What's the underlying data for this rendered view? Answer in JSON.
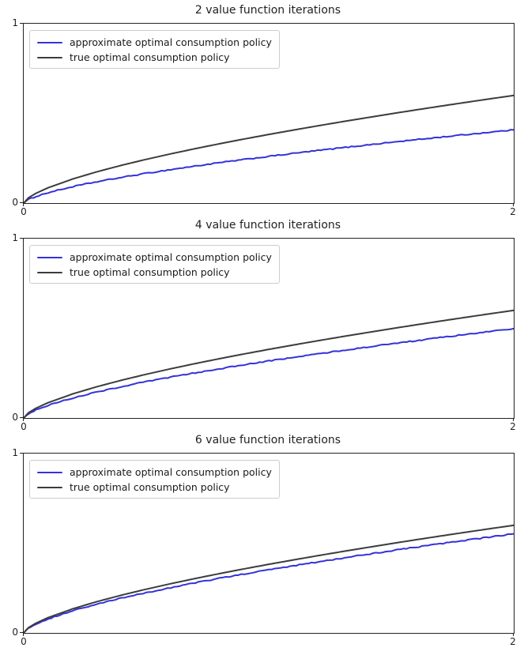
{
  "figure": {
    "background": "#ffffff",
    "text_color": "#1f1f1f",
    "spine_color": "#222222",
    "approx_color": "#3532d8",
    "true_color": "#3c3c3c"
  },
  "chart_data": [
    {
      "type": "line",
      "title": "2 value function iterations",
      "xlabel": "",
      "ylabel": "",
      "xlim": [
        0,
        2
      ],
      "ylim": [
        0,
        1
      ],
      "xtick_labels": [
        "0",
        "2"
      ],
      "ytick_labels": [
        "0",
        "1"
      ],
      "grid": false,
      "legend_position": "upper left",
      "series": [
        {
          "name": "approximate optimal consumption policy",
          "color": "#3532d8",
          "linewidth": 2,
          "noise": 0.003,
          "x": [
            0,
            0.02,
            0.05,
            0.1,
            0.2,
            0.3,
            0.4,
            0.5,
            0.6,
            0.7,
            0.8,
            0.9,
            1.0,
            1.1,
            1.2,
            1.3,
            1.4,
            1.5,
            1.6,
            1.7,
            1.8,
            1.9,
            2.0
          ],
          "y": [
            0,
            0.0205,
            0.0371,
            0.0582,
            0.0914,
            0.1189,
            0.1433,
            0.1658,
            0.1866,
            0.2063,
            0.225,
            0.2429,
            0.2601,
            0.2767,
            0.2928,
            0.3084,
            0.3237,
            0.3386,
            0.3531,
            0.3672,
            0.3811,
            0.3947,
            0.4081
          ]
        },
        {
          "name": "true optimal consumption policy",
          "color": "#3c3c3c",
          "linewidth": 2,
          "noise": 0,
          "x": [
            0,
            0.02,
            0.05,
            0.1,
            0.2,
            0.3,
            0.4,
            0.5,
            0.6,
            0.7,
            0.8,
            0.9,
            1.0,
            1.1,
            1.2,
            1.3,
            1.4,
            1.5,
            1.6,
            1.7,
            1.8,
            1.9,
            2.0
          ],
          "y": [
            0,
            0.0301,
            0.0546,
            0.0856,
            0.1344,
            0.1749,
            0.2108,
            0.2438,
            0.2744,
            0.3034,
            0.3309,
            0.3572,
            0.3825,
            0.4069,
            0.4306,
            0.4536,
            0.476,
            0.4979,
            0.5192,
            0.54,
            0.5605,
            0.5805,
            0.6
          ]
        }
      ]
    },
    {
      "type": "line",
      "title": "4 value function iterations",
      "xlabel": "",
      "ylabel": "",
      "xlim": [
        0,
        2
      ],
      "ylim": [
        0,
        1
      ],
      "xtick_labels": [
        "0",
        "2"
      ],
      "ytick_labels": [
        "0",
        "1"
      ],
      "grid": false,
      "legend_position": "upper left",
      "series": [
        {
          "name": "approximate optimal consumption policy",
          "color": "#3532d8",
          "linewidth": 2,
          "noise": 0.003,
          "x": [
            0,
            0.02,
            0.05,
            0.1,
            0.2,
            0.3,
            0.4,
            0.5,
            0.6,
            0.7,
            0.8,
            0.9,
            1.0,
            1.1,
            1.2,
            1.3,
            1.4,
            1.5,
            1.6,
            1.7,
            1.8,
            1.9,
            2.0
          ],
          "y": [
            0,
            0.025,
            0.0453,
            0.071,
            0.1116,
            0.1452,
            0.175,
            0.2024,
            0.2278,
            0.2518,
            0.2746,
            0.2965,
            0.3175,
            0.3377,
            0.3574,
            0.3765,
            0.3951,
            0.4132,
            0.4309,
            0.4482,
            0.4652,
            0.4818,
            0.4982
          ]
        },
        {
          "name": "true optimal consumption policy",
          "color": "#3c3c3c",
          "linewidth": 2,
          "noise": 0,
          "x": [
            0,
            0.02,
            0.05,
            0.1,
            0.2,
            0.3,
            0.4,
            0.5,
            0.6,
            0.7,
            0.8,
            0.9,
            1.0,
            1.1,
            1.2,
            1.3,
            1.4,
            1.5,
            1.6,
            1.7,
            1.8,
            1.9,
            2.0
          ],
          "y": [
            0,
            0.0301,
            0.0546,
            0.0856,
            0.1344,
            0.1749,
            0.2108,
            0.2438,
            0.2744,
            0.3034,
            0.3309,
            0.3572,
            0.3825,
            0.4069,
            0.4306,
            0.4536,
            0.476,
            0.4979,
            0.5192,
            0.54,
            0.5605,
            0.5805,
            0.6
          ]
        }
      ]
    },
    {
      "type": "line",
      "title": "6 value function iterations",
      "xlabel": "",
      "ylabel": "",
      "xlim": [
        0,
        2
      ],
      "ylim": [
        0,
        1
      ],
      "xtick_labels": [
        "0",
        "2"
      ],
      "ytick_labels": [
        "0",
        "1"
      ],
      "grid": false,
      "legend_position": "upper left",
      "series": [
        {
          "name": "approximate optimal consumption policy",
          "color": "#3532d8",
          "linewidth": 2,
          "noise": 0.003,
          "x": [
            0,
            0.02,
            0.05,
            0.1,
            0.2,
            0.3,
            0.4,
            0.5,
            0.6,
            0.7,
            0.8,
            0.9,
            1.0,
            1.1,
            1.2,
            1.3,
            1.4,
            1.5,
            1.6,
            1.7,
            1.8,
            1.9,
            2.0
          ],
          "y": [
            0,
            0.0277,
            0.0502,
            0.0788,
            0.1236,
            0.1609,
            0.1939,
            0.2243,
            0.2524,
            0.2791,
            0.3044,
            0.3286,
            0.3519,
            0.3743,
            0.3962,
            0.4173,
            0.4379,
            0.4581,
            0.4777,
            0.4968,
            0.5157,
            0.5341,
            0.5522
          ]
        },
        {
          "name": "true optimal consumption policy",
          "color": "#3c3c3c",
          "linewidth": 2,
          "noise": 0,
          "x": [
            0,
            0.02,
            0.05,
            0.1,
            0.2,
            0.3,
            0.4,
            0.5,
            0.6,
            0.7,
            0.8,
            0.9,
            1.0,
            1.1,
            1.2,
            1.3,
            1.4,
            1.5,
            1.6,
            1.7,
            1.8,
            1.9,
            2.0
          ],
          "y": [
            0,
            0.0301,
            0.0546,
            0.0856,
            0.1344,
            0.1749,
            0.2108,
            0.2438,
            0.2744,
            0.3034,
            0.3309,
            0.3572,
            0.3825,
            0.4069,
            0.4306,
            0.4536,
            0.476,
            0.4979,
            0.5192,
            0.54,
            0.5605,
            0.5805,
            0.6
          ]
        }
      ]
    }
  ]
}
